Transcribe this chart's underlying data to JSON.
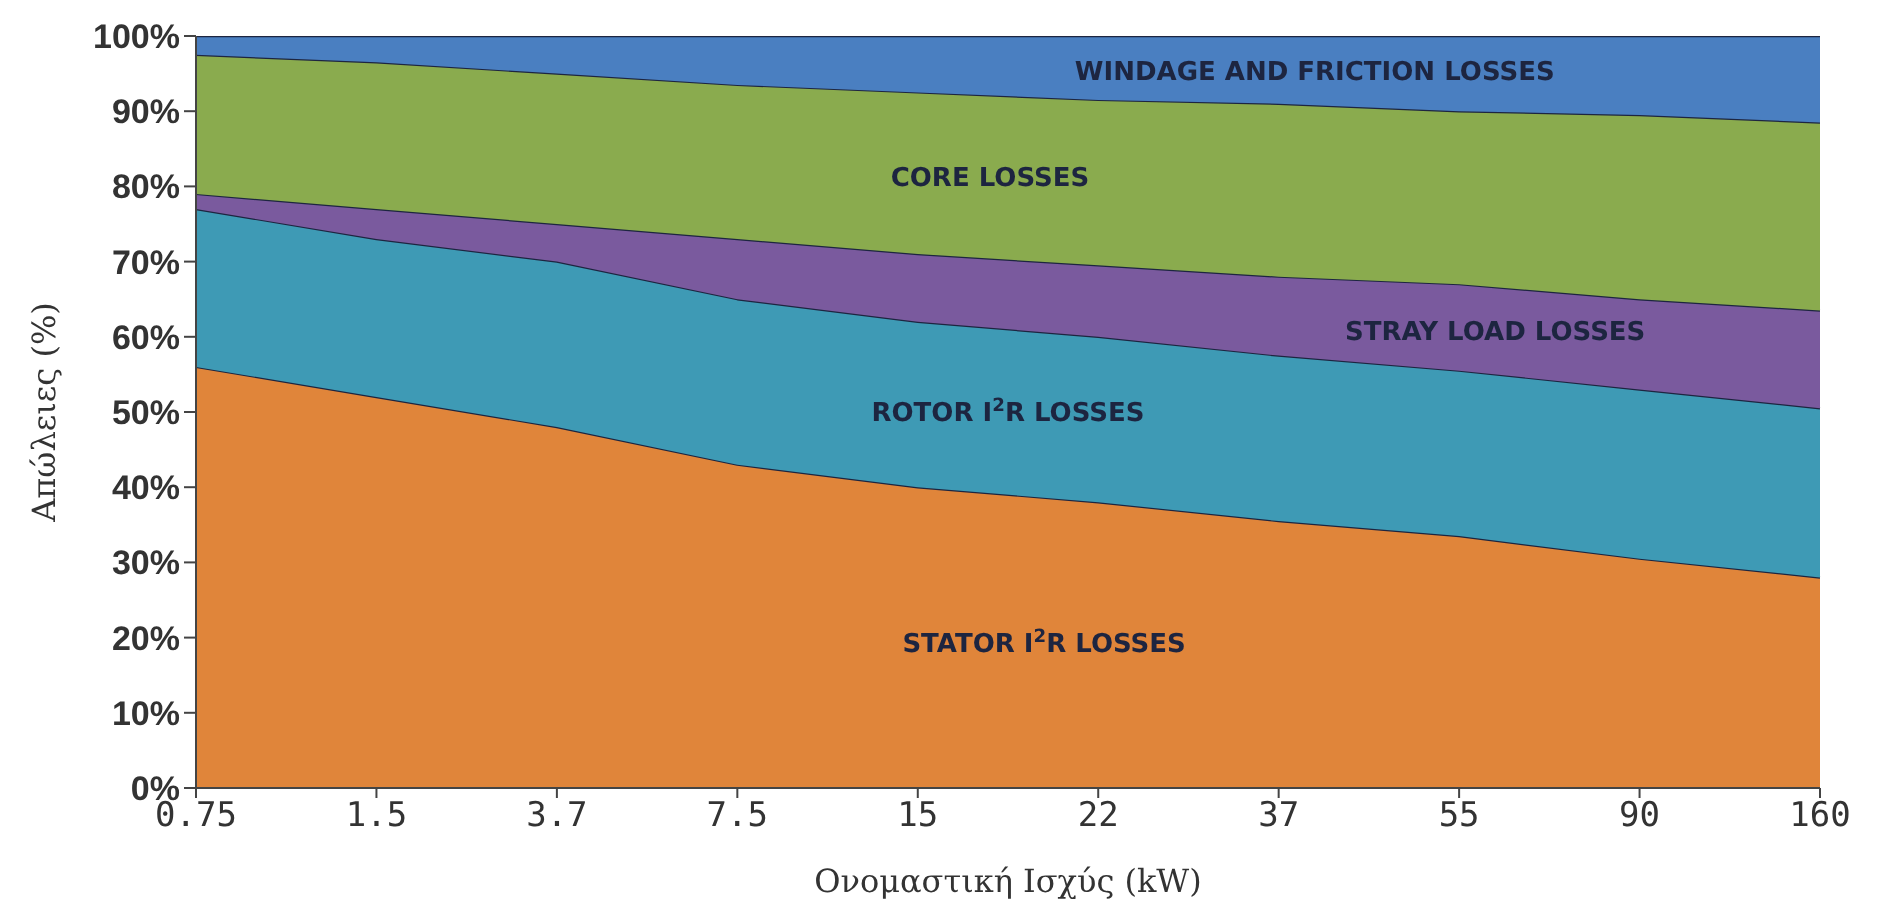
{
  "chart_data": {
    "type": "area",
    "stacked": true,
    "xlabel": "Ονομαστική Ισχύς  (kW)",
    "ylabel": "Απώλειες  (%)",
    "categories": [
      "0.75",
      "1.5",
      "3.7",
      "7.5",
      "15",
      "22",
      "37",
      "55",
      "90",
      "160"
    ],
    "series": [
      {
        "name": "STATOR I$^{2}$R LOSSES",
        "color": "#e0853a",
        "values": [
          56,
          52,
          48,
          43,
          40,
          38,
          35.5,
          33.5,
          30.5,
          28
        ]
      },
      {
        "name": "ROTOR I$^{2}$R LOSSES",
        "color": "#3e9ab5",
        "values": [
          21,
          21,
          22,
          22,
          22,
          22,
          22,
          22,
          22.5,
          22.5
        ]
      },
      {
        "name": "STRAY LOAD LOSSES",
        "color": "#7a5a9e",
        "values": [
          2,
          4,
          5,
          8,
          9,
          9.5,
          10.5,
          11.5,
          12,
          13
        ]
      },
      {
        "name": "CORE LOSSES",
        "color": "#8aab4e",
        "values": [
          18.5,
          19.5,
          20,
          20.5,
          21.5,
          22,
          23,
          23,
          24.5,
          25
        ]
      },
      {
        "name": "WINDAGE AND FRICTION LOSSES",
        "color": "#4a7fc1",
        "values": [
          2.5,
          3.5,
          5,
          6.5,
          7.5,
          8.5,
          9,
          10,
          10.5,
          11.5
        ]
      }
    ],
    "ylim": [
      0,
      100
    ],
    "yticks": [
      {
        "value": 0,
        "label": "0%"
      },
      {
        "value": 10,
        "label": "10%"
      },
      {
        "value": 20,
        "label": "20%"
      },
      {
        "value": 30,
        "label": "30%"
      },
      {
        "value": 40,
        "label": "40%"
      },
      {
        "value": 50,
        "label": "50%"
      },
      {
        "value": 60,
        "label": "60%"
      },
      {
        "value": 70,
        "label": "70%"
      },
      {
        "value": 80,
        "label": "80%"
      },
      {
        "value": 90,
        "label": "90%"
      },
      {
        "value": 100,
        "label": "100%"
      }
    ],
    "grid": false,
    "legend": false
  }
}
